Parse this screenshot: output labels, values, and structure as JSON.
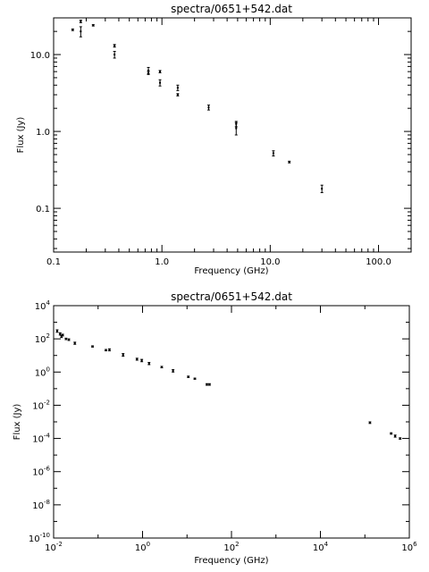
{
  "chart_data": [
    {
      "type": "scatter",
      "title": "spectra/0651+542.dat",
      "xlabel": "Frequency (GHz)",
      "ylabel": "Flux (Jy)",
      "xscale": "log",
      "yscale": "log",
      "xlim": [
        0.1,
        200
      ],
      "ylim": [
        0.027,
        30
      ],
      "xticklabels": [
        {
          "v": 0.1,
          "label": "0.1"
        },
        {
          "v": 1,
          "label": "1.0"
        },
        {
          "v": 10,
          "label": "10.0"
        },
        {
          "v": 100,
          "label": "100.0"
        }
      ],
      "yticklabels": [
        {
          "v": 0.1,
          "label": "0.1"
        },
        {
          "v": 1,
          "label": "1.0"
        },
        {
          "v": 10,
          "label": "10.0"
        }
      ],
      "points": [
        {
          "x": 0.15,
          "y": 21.0,
          "err": 0.5
        },
        {
          "x": 0.178,
          "y": 27.0,
          "err": 1.0
        },
        {
          "x": 0.178,
          "y": 20.0,
          "err": 3.0
        },
        {
          "x": 0.232,
          "y": 24.0,
          "err": 0.5
        },
        {
          "x": 0.365,
          "y": 13.0,
          "err": 0.5
        },
        {
          "x": 0.365,
          "y": 10.0,
          "err": 1.0
        },
        {
          "x": 0.75,
          "y": 6.2,
          "err": 0.6
        },
        {
          "x": 0.75,
          "y": 5.8,
          "err": 0.3
        },
        {
          "x": 0.96,
          "y": 6.0,
          "err": 0.2
        },
        {
          "x": 0.96,
          "y": 4.3,
          "err": 0.4
        },
        {
          "x": 1.4,
          "y": 3.7,
          "err": 0.3
        },
        {
          "x": 1.4,
          "y": 3.0,
          "err": 0.1
        },
        {
          "x": 2.7,
          "y": 2.05,
          "err": 0.15
        },
        {
          "x": 4.85,
          "y": 1.25,
          "err": 0.1
        },
        {
          "x": 4.85,
          "y": 1.1,
          "err": 0.2
        },
        {
          "x": 10.7,
          "y": 0.52,
          "err": 0.04
        },
        {
          "x": 15.0,
          "y": 0.4,
          "err": 0.01
        },
        {
          "x": 30.0,
          "y": 0.18,
          "err": 0.02
        }
      ]
    },
    {
      "type": "scatter",
      "title": "spectra/0651+542.dat",
      "xlabel": "Frequency (GHz)",
      "ylabel": "Flux (Jy)",
      "xscale": "log",
      "yscale": "log",
      "xlim": [
        0.01,
        1000000
      ],
      "ylim": [
        1e-10,
        10000
      ],
      "xticklabels": [
        {
          "v": 0.01,
          "base": "10",
          "exp": "-2"
        },
        {
          "v": 1,
          "base": "10",
          "exp": "0"
        },
        {
          "v": 100,
          "base": "10",
          "exp": "2"
        },
        {
          "v": 10000,
          "base": "10",
          "exp": "4"
        },
        {
          "v": 1000000,
          "base": "10",
          "exp": "6"
        }
      ],
      "yticklabels": [
        {
          "v": 1e-10,
          "base": "10",
          "exp": "-10"
        },
        {
          "v": 1e-08,
          "base": "10",
          "exp": "-8"
        },
        {
          "v": 1e-06,
          "base": "10",
          "exp": "-6"
        },
        {
          "v": 0.0001,
          "base": "10",
          "exp": "-4"
        },
        {
          "v": 0.01,
          "base": "10",
          "exp": "-2"
        },
        {
          "v": 1,
          "base": "10",
          "exp": "0"
        },
        {
          "v": 100,
          "base": "10",
          "exp": "2"
        },
        {
          "v": 10000,
          "base": "10",
          "exp": "4"
        }
      ],
      "points": [
        {
          "x": 0.012,
          "y": 300,
          "err": 50
        },
        {
          "x": 0.014,
          "y": 200,
          "err": 30
        },
        {
          "x": 0.015,
          "y": 140,
          "err": 20
        },
        {
          "x": 0.016,
          "y": 170,
          "err": 20
        },
        {
          "x": 0.019,
          "y": 100,
          "err": 10
        },
        {
          "x": 0.022,
          "y": 90,
          "err": 10
        },
        {
          "x": 0.03,
          "y": 55,
          "err": 8
        },
        {
          "x": 0.075,
          "y": 35,
          "err": 3
        },
        {
          "x": 0.15,
          "y": 21,
          "err": 2
        },
        {
          "x": 0.18,
          "y": 22,
          "err": 3
        },
        {
          "x": 0.365,
          "y": 11,
          "err": 2
        },
        {
          "x": 0.75,
          "y": 6,
          "err": 0.8
        },
        {
          "x": 0.96,
          "y": 5,
          "err": 0.8
        },
        {
          "x": 1.4,
          "y": 3.3,
          "err": 0.5
        },
        {
          "x": 2.7,
          "y": 2.0,
          "err": 0.2
        },
        {
          "x": 4.85,
          "y": 1.2,
          "err": 0.2
        },
        {
          "x": 10.7,
          "y": 0.52,
          "err": 0.05
        },
        {
          "x": 15,
          "y": 0.4,
          "err": 0.03
        },
        {
          "x": 28,
          "y": 0.18,
          "err": 0.02
        },
        {
          "x": 32,
          "y": 0.18,
          "err": 0.02
        },
        {
          "x": 130000,
          "y": 0.0009,
          "err": 0.0001
        },
        {
          "x": 390000,
          "y": 0.0002,
          "err": 2e-05
        },
        {
          "x": 480000,
          "y": 0.00014,
          "err": 2e-05
        },
        {
          "x": 620000,
          "y": 0.0001,
          "err": 1e-05
        }
      ]
    }
  ]
}
